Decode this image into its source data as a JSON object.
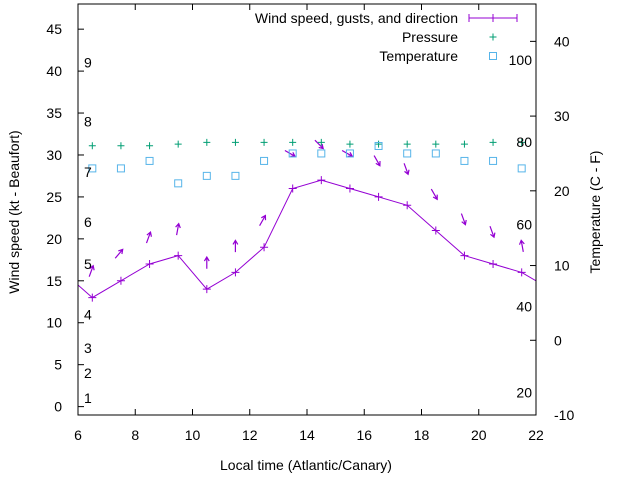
{
  "chart_data": {
    "type": "line",
    "xlabel": "Local time (Atlantic/Canary)",
    "ylabel_left": "Wind speed (kt - Beaufort)",
    "ylabel_right": "Temperature (C - F)",
    "xlim": [
      6,
      22
    ],
    "ylim": [
      -1,
      48
    ],
    "y2lim": [
      -10,
      45
    ],
    "x_ticks": [
      "6",
      "8",
      "10",
      "12",
      "14",
      "16",
      "18",
      "20",
      "22"
    ],
    "y_ticks": [
      "0",
      "5",
      "10",
      "15",
      "20",
      "25",
      "30",
      "35",
      "40",
      "45"
    ],
    "y2_ticks": [
      "-10",
      "0",
      "10",
      "20",
      "30",
      "40"
    ],
    "beaufort_labels": [
      {
        "text": "1",
        "y": 1
      },
      {
        "text": "2",
        "y": 4
      },
      {
        "text": "3",
        "y": 7
      },
      {
        "text": "4",
        "y": 11
      },
      {
        "text": "5",
        "y": 17
      },
      {
        "text": "6",
        "y": 22
      },
      {
        "text": "7",
        "y": 28
      },
      {
        "text": "8",
        "y": 34
      },
      {
        "text": "9",
        "y": 41
      }
    ],
    "fahrenheit_labels": [
      {
        "text": "20",
        "y2": -7
      },
      {
        "text": "40",
        "y2": 4.5
      },
      {
        "text": "60",
        "y2": 15.5
      },
      {
        "text": "80",
        "y2": 26.5
      },
      {
        "text": "100",
        "y2": 37.5
      }
    ],
    "legend_position": "top-right",
    "series": [
      {
        "name": "Wind speed, gusts, and direction",
        "color": "#9400d3",
        "x": [
          5.5,
          6.5,
          7.5,
          8.5,
          9.5,
          10.5,
          11.5,
          12.5,
          13.5,
          14.5,
          15.5,
          16.5,
          17.5,
          18.5,
          19.5,
          20.5,
          21.5,
          22.5
        ],
        "values": [
          16,
          13,
          15,
          17,
          18,
          14,
          16,
          19,
          26,
          27,
          26,
          25,
          24,
          21,
          18,
          17,
          16,
          14
        ],
        "gusts_x": [
          6.5,
          7.5,
          8.5,
          9.5,
          10.5,
          11.5,
          12.5,
          13.5,
          14.5,
          15.5,
          16.5,
          17.5,
          18.5,
          19.5,
          20.5,
          21.5
        ],
        "gusts": [
          16.5,
          18.5,
          20.5,
          21.5,
          17.5,
          19.5,
          22.5,
          30,
          31,
          30,
          29,
          28,
          25,
          22,
          20.5,
          19.5
        ],
        "direction_deg": [
          200,
          220,
          200,
          190,
          180,
          180,
          210,
          300,
          315,
          300,
          330,
          340,
          330,
          340,
          340,
          170
        ]
      },
      {
        "name": "Pressure",
        "color": "#009e73",
        "x": [
          6.5,
          7.5,
          8.5,
          9.5,
          10.5,
          11.5,
          12.5,
          13.5,
          14.5,
          15.5,
          16.5,
          17.5,
          18.5,
          19.5,
          20.5,
          21.5
        ],
        "values": [
          31.1,
          31.1,
          31.1,
          31.3,
          31.5,
          31.5,
          31.5,
          31.5,
          31.5,
          31.3,
          31.3,
          31.3,
          31.3,
          31.3,
          31.5,
          31.5
        ]
      },
      {
        "name": "Temperature",
        "color": "#56b4e9",
        "x": [
          6.5,
          7.5,
          8.5,
          9.5,
          10.5,
          11.5,
          12.5,
          13.5,
          14.5,
          15.5,
          16.5,
          17.5,
          18.5,
          19.5,
          20.5,
          21.5
        ],
        "values_y2": [
          23,
          23,
          24,
          21,
          22,
          22,
          24,
          25,
          25,
          25,
          26,
          25,
          25,
          24,
          24,
          23
        ]
      }
    ]
  }
}
